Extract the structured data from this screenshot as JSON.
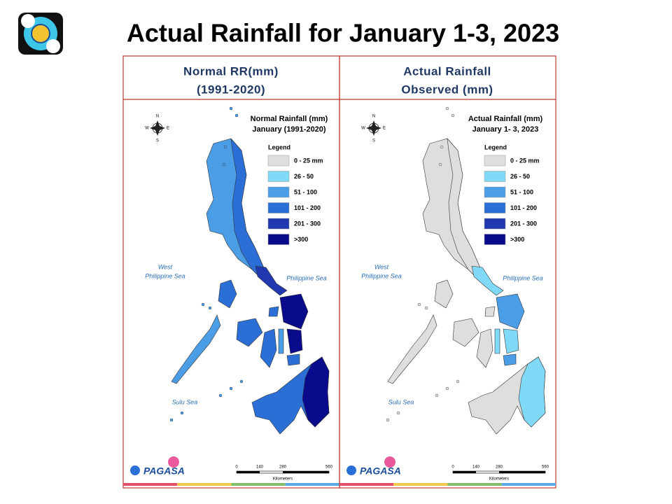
{
  "title": "Actual Rainfall for January 1-3, 2023",
  "panels": [
    {
      "header": [
        "Normal RR(mm)",
        "(1991-2020)"
      ],
      "map_title": [
        "Normal Rainfall (mm)",
        "January (1991-2020)"
      ],
      "legend_title": "Legend",
      "legend": [
        {
          "label": "0 - 25 mm",
          "color": "#dedede"
        },
        {
          "label": "26 - 50",
          "color": "#7fd9f7"
        },
        {
          "label": "51 - 100",
          "color": "#4b9de6"
        },
        {
          "label": "101 - 200",
          "color": "#2b6fd6"
        },
        {
          "label": "201 - 300",
          "color": "#2038b0"
        },
        {
          "label": ">300",
          "color": "#0a0a8c"
        }
      ],
      "compass": [
        "N",
        "E",
        "S",
        "W"
      ],
      "seas": [
        "West",
        "Philippine Sea",
        "Philippine Sea",
        "Sulu Sea"
      ],
      "scale": [
        0,
        140,
        280,
        560
      ],
      "scale_unit": "Kilometers",
      "brand": "PAGASA"
    },
    {
      "header": [
        "Actual Rainfall",
        "Observed (mm)"
      ],
      "map_title": [
        "Actual Rainfall (mm)",
        "January 1- 3, 2023"
      ],
      "legend_title": "Legend",
      "legend": [
        {
          "label": "0 - 25 mm",
          "color": "#dedede"
        },
        {
          "label": "26 - 50",
          "color": "#7fd9f7"
        },
        {
          "label": "51 - 100",
          "color": "#4b9de6"
        },
        {
          "label": "101 - 200",
          "color": "#2b6fd6"
        },
        {
          "label": "201 - 300",
          "color": "#2038b0"
        },
        {
          "label": ">300",
          "color": "#0a0a8c"
        }
      ],
      "compass": [
        "N",
        "E",
        "S",
        "W"
      ],
      "seas": [
        "West",
        "Philippine Sea",
        "Philippine Sea",
        "Sulu Sea"
      ],
      "scale": [
        0,
        140,
        280,
        560
      ],
      "scale_unit": "Kilometers",
      "brand": "PAGASA"
    }
  ]
}
